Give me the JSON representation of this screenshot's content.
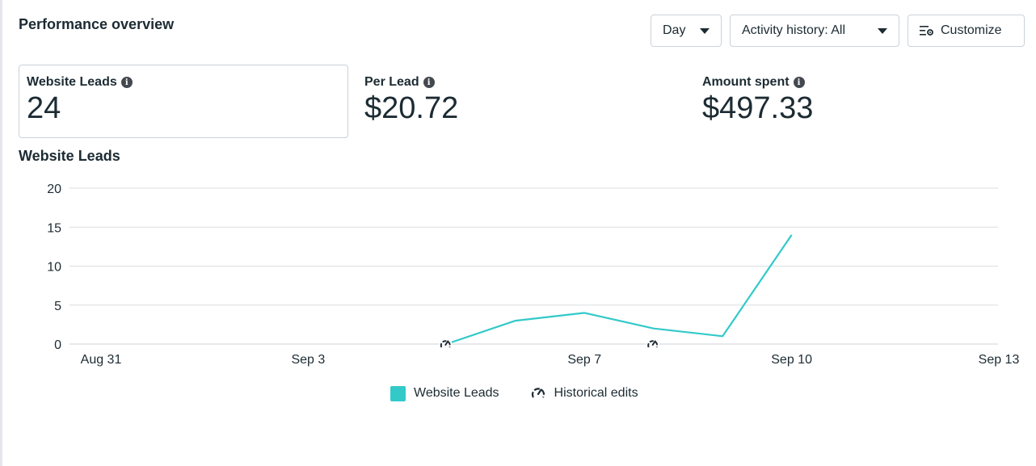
{
  "header": {
    "title": "Performance overview",
    "day_label": "Day",
    "activity_label": "Activity history: All",
    "customize_label": "Customize"
  },
  "metrics": [
    {
      "label": "Website Leads",
      "value": "24"
    },
    {
      "label": "Per Lead",
      "value": "$20.72"
    },
    {
      "label": "Amount spent",
      "value": "$497.33"
    }
  ],
  "chart_title": "Website Leads",
  "colors": {
    "series": "#33c9c9",
    "grid": "#dadde1",
    "text": "#1c2b33"
  },
  "chart_data": {
    "type": "line",
    "title": "Website Leads",
    "x_ticks": [
      "Aug 31",
      "Sep 3",
      "Sep 7",
      "Sep 10",
      "Sep 13"
    ],
    "x_tick_days": [
      0,
      3,
      7,
      10,
      13
    ],
    "ylim": [
      0,
      20
    ],
    "y_ticks": [
      0,
      5,
      10,
      15,
      20
    ],
    "series": [
      {
        "name": "Website Leads",
        "x": [
          "Sep 5",
          "Sep 6",
          "Sep 7",
          "Sep 8",
          "Sep 9",
          "Sep 10"
        ],
        "x_days": [
          5,
          6,
          7,
          8,
          9,
          10
        ],
        "values": [
          0,
          3,
          4,
          2,
          1,
          14
        ]
      }
    ],
    "historical_edits": [
      "Sep 5",
      "Sep 8"
    ],
    "historical_edit_days": [
      5,
      8
    ],
    "legend": [
      "Website Leads",
      "Historical edits"
    ],
    "grid": true,
    "legend_position": "bottom"
  }
}
